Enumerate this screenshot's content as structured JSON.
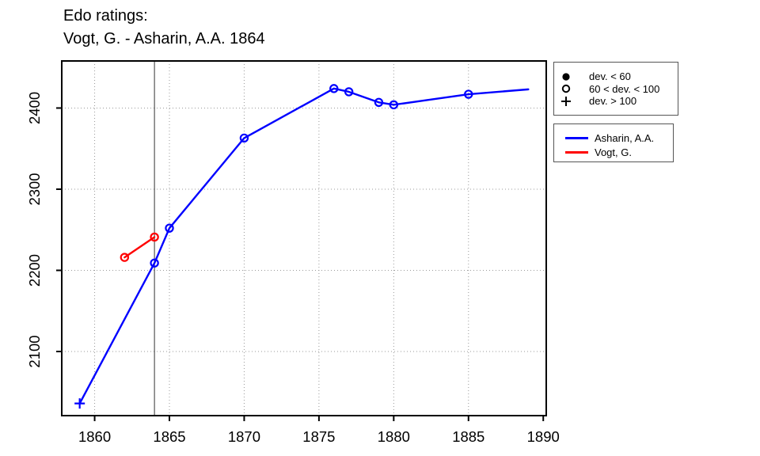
{
  "title": {
    "line1": "Edo ratings:",
    "line2": "Vogt, G. - Asharin, A.A. 1864"
  },
  "chart_data": {
    "type": "line",
    "title": "Edo ratings: Vogt, G. - Asharin, A.A. 1864",
    "xlabel": "",
    "ylabel": "",
    "xlim": [
      1857.8,
      1890.2
    ],
    "ylim": [
      2021,
      2458
    ],
    "x_ticks": [
      1860,
      1865,
      1870,
      1875,
      1880,
      1885,
      1890
    ],
    "x_grid_ticks": [
      1860,
      1865,
      1870,
      1875,
      1880,
      1885
    ],
    "y_ticks": [
      2100,
      2200,
      2300,
      2400
    ],
    "grid": true,
    "grid_style": "dotted",
    "event_year_line": 1864,
    "colors": {
      "asharin": "#0000ff",
      "vogt": "#ff0000",
      "grid": "#999999",
      "axis": "#000000",
      "event_line": "#333333"
    },
    "series": [
      {
        "name": "Asharin, A.A.",
        "color": "#0000ff",
        "points": [
          {
            "year": 1859,
            "rating": 2036,
            "marker": "plus"
          },
          {
            "year": 1864,
            "rating": 2209,
            "marker": "open-circle"
          },
          {
            "year": 1865,
            "rating": 2252,
            "marker": "open-circle"
          },
          {
            "year": 1870,
            "rating": 2363,
            "marker": "open-circle"
          },
          {
            "year": 1876,
            "rating": 2424,
            "marker": "open-circle"
          },
          {
            "year": 1877,
            "rating": 2420,
            "marker": "open-circle"
          },
          {
            "year": 1879,
            "rating": 2407,
            "marker": "open-circle"
          },
          {
            "year": 1880,
            "rating": 2404,
            "marker": "open-circle"
          },
          {
            "year": 1885,
            "rating": 2417,
            "marker": "open-circle"
          },
          {
            "year": 1889,
            "rating": 2423,
            "marker": "none"
          }
        ]
      },
      {
        "name": "Vogt, G.",
        "color": "#ff0000",
        "points": [
          {
            "year": 1862,
            "rating": 2216,
            "marker": "open-circle"
          },
          {
            "year": 1864,
            "rating": 2241,
            "marker": "open-circle"
          }
        ]
      }
    ],
    "marker_legend": {
      "items": [
        {
          "symbol": "filled-circle",
          "label": "dev. < 60"
        },
        {
          "symbol": "open-circle",
          "label": "60 < dev. < 100"
        },
        {
          "symbol": "plus",
          "label": "dev. > 100"
        }
      ]
    },
    "series_legend": {
      "items": [
        {
          "label": "Asharin, A.A."
        },
        {
          "label": "Vogt, G."
        }
      ]
    },
    "legend_position": "outside-top-right"
  }
}
